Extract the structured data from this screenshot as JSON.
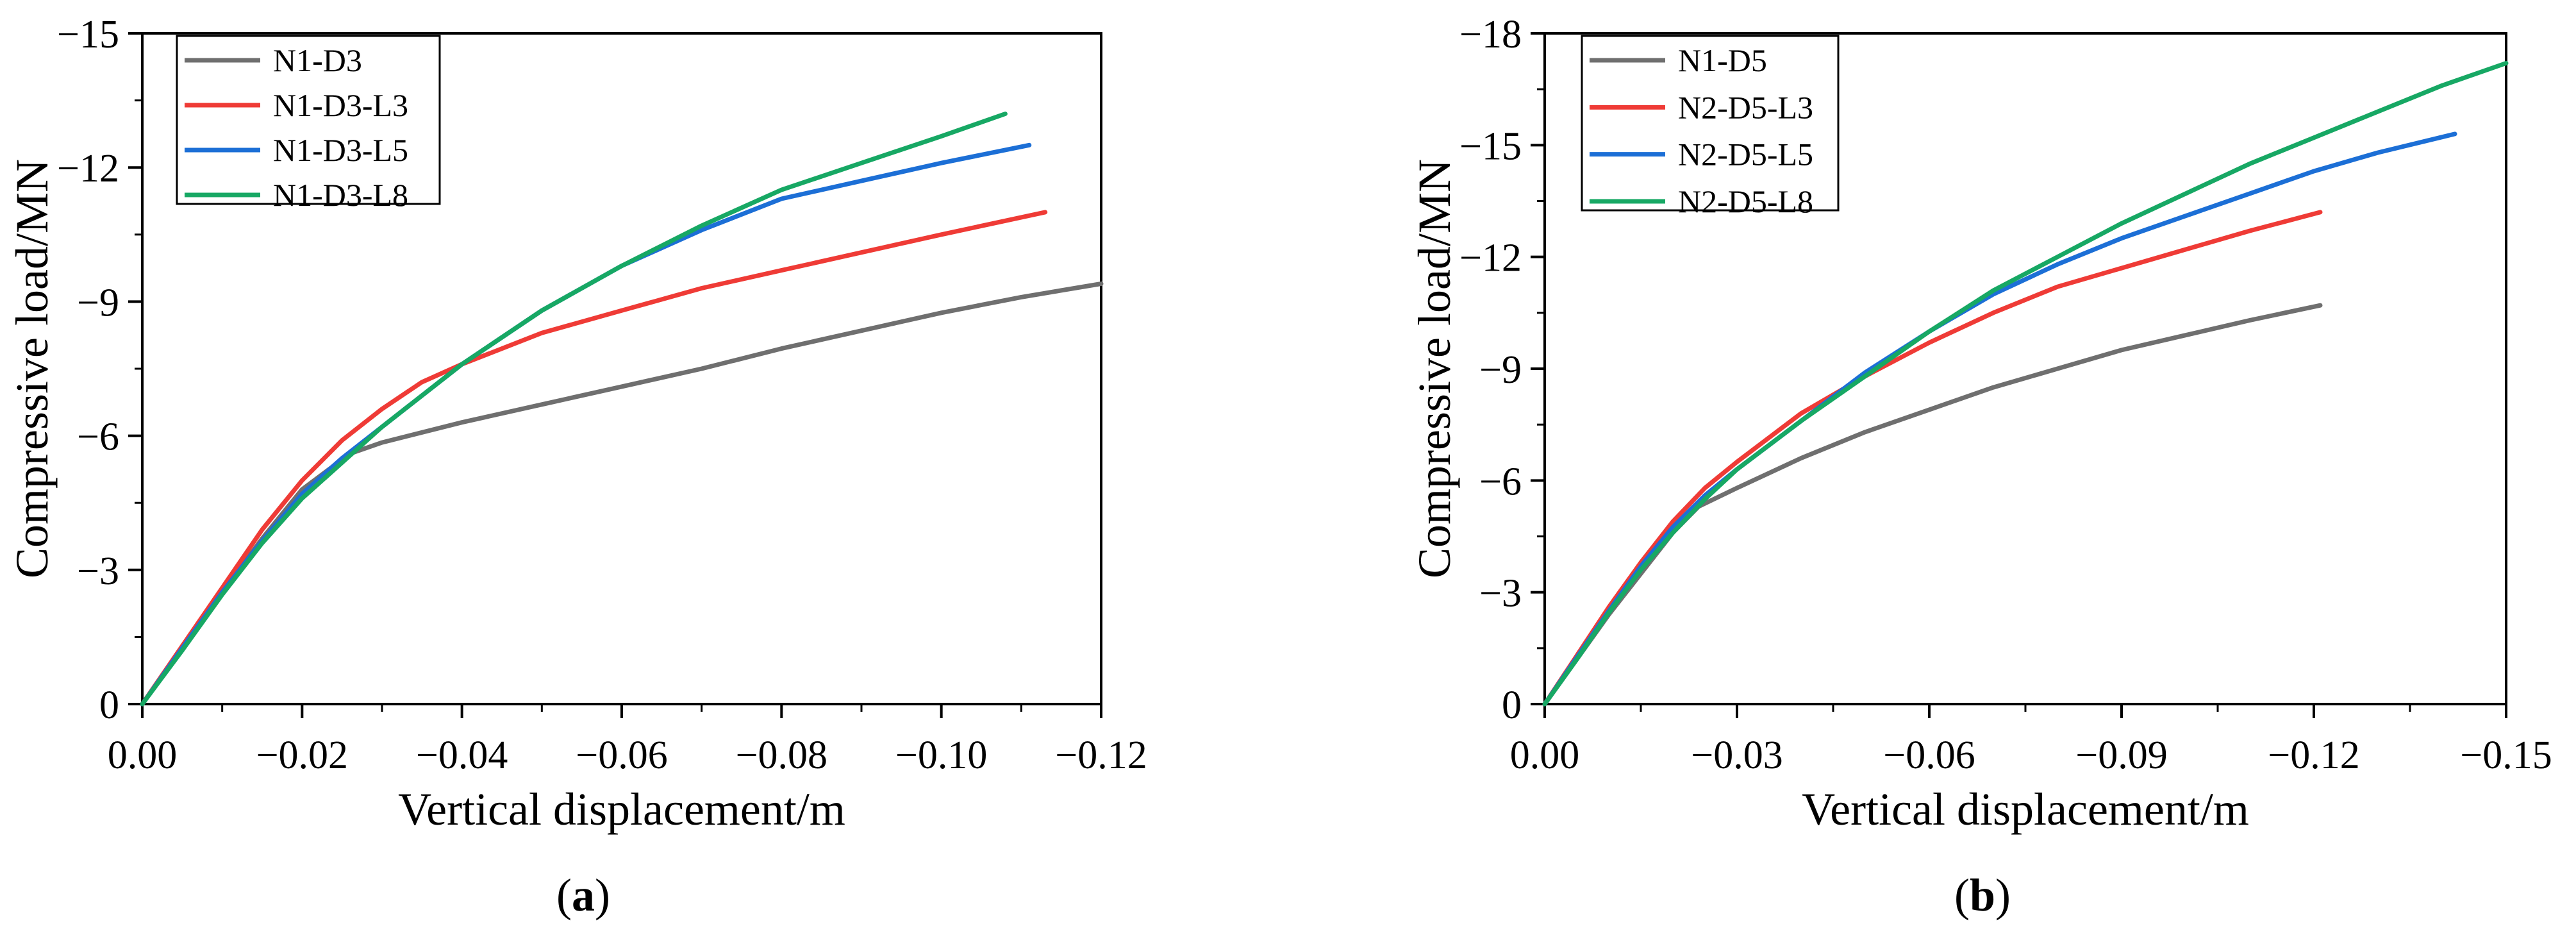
{
  "colors": {
    "N1-D3": "#6f6f6f",
    "N1-D3-L3": "#ef3b36",
    "N1-D3-L5": "#1c6fd6",
    "N1-D3-L8": "#17a864",
    "N1-D5": "#6f6f6f",
    "N2-D5-L3": "#ef3b36",
    "N2-D5-L5": "#1c6fd6",
    "N2-D5-L8": "#17a864"
  },
  "chart_data": [
    {
      "type": "line",
      "caption": "(a)",
      "xlabel": "Vertical displacement/m",
      "ylabel": "Compressive load/MN",
      "xlim": [
        0,
        -0.12
      ],
      "ylim": [
        0,
        -15
      ],
      "xticks": [
        0,
        -0.02,
        -0.04,
        -0.06,
        -0.08,
        -0.1,
        -0.12
      ],
      "xtick_labels": [
        "0.00",
        "−0.02",
        "−0.04",
        "−0.06",
        "−0.08",
        "−0.10",
        "−0.12"
      ],
      "yticks": [
        0,
        -3,
        -6,
        -9,
        -12,
        -15
      ],
      "ytick_labels": [
        "0",
        "−3",
        "−6",
        "−9",
        "−12",
        "−15"
      ],
      "legend_position": "top-left",
      "series": [
        {
          "name": "N1-D3",
          "points": [
            [
              0,
              0
            ],
            [
              -0.005,
              -1.25
            ],
            [
              -0.01,
              -2.5
            ],
            [
              -0.015,
              -3.7
            ],
            [
              -0.02,
              -4.8
            ],
            [
              -0.026,
              -5.6
            ],
            [
              -0.03,
              -5.85
            ],
            [
              -0.04,
              -6.3
            ],
            [
              -0.05,
              -6.7
            ],
            [
              -0.06,
              -7.1
            ],
            [
              -0.07,
              -7.5
            ],
            [
              -0.08,
              -7.95
            ],
            [
              -0.09,
              -8.35
            ],
            [
              -0.1,
              -8.75
            ],
            [
              -0.11,
              -9.1
            ],
            [
              -0.12,
              -9.4
            ]
          ]
        },
        {
          "name": "N1-D3-L3",
          "points": [
            [
              0,
              0
            ],
            [
              -0.005,
              -1.3
            ],
            [
              -0.01,
              -2.6
            ],
            [
              -0.015,
              -3.9
            ],
            [
              -0.02,
              -5.0
            ],
            [
              -0.025,
              -5.9
            ],
            [
              -0.03,
              -6.6
            ],
            [
              -0.035,
              -7.2
            ],
            [
              -0.04,
              -7.6
            ],
            [
              -0.05,
              -8.3
            ],
            [
              -0.06,
              -8.8
            ],
            [
              -0.07,
              -9.3
            ],
            [
              -0.08,
              -9.7
            ],
            [
              -0.09,
              -10.1
            ],
            [
              -0.1,
              -10.5
            ],
            [
              -0.113,
              -11.0
            ]
          ]
        },
        {
          "name": "N1-D3-L5",
          "points": [
            [
              0,
              0
            ],
            [
              -0.005,
              -1.25
            ],
            [
              -0.01,
              -2.5
            ],
            [
              -0.015,
              -3.65
            ],
            [
              -0.02,
              -4.7
            ],
            [
              -0.025,
              -5.5
            ],
            [
              -0.03,
              -6.2
            ],
            [
              -0.04,
              -7.6
            ],
            [
              -0.05,
              -8.8
            ],
            [
              -0.06,
              -9.8
            ],
            [
              -0.07,
              -10.6
            ],
            [
              -0.08,
              -11.3
            ],
            [
              -0.09,
              -11.7
            ],
            [
              -0.1,
              -12.1
            ],
            [
              -0.111,
              -12.5
            ]
          ]
        },
        {
          "name": "N1-D3-L8",
          "points": [
            [
              0,
              0
            ],
            [
              -0.005,
              -1.2
            ],
            [
              -0.01,
              -2.45
            ],
            [
              -0.015,
              -3.6
            ],
            [
              -0.02,
              -4.6
            ],
            [
              -0.025,
              -5.4
            ],
            [
              -0.03,
              -6.2
            ],
            [
              -0.04,
              -7.6
            ],
            [
              -0.05,
              -8.8
            ],
            [
              -0.06,
              -9.8
            ],
            [
              -0.07,
              -10.7
            ],
            [
              -0.08,
              -11.5
            ],
            [
              -0.09,
              -12.1
            ],
            [
              -0.1,
              -12.7
            ],
            [
              -0.108,
              -13.2
            ]
          ]
        }
      ]
    },
    {
      "type": "line",
      "caption": "(b)",
      "xlabel": "Vertical displacement/m",
      "ylabel": "Compressive load/MN",
      "xlim": [
        0,
        -0.15
      ],
      "ylim": [
        0,
        -18
      ],
      "xticks": [
        0,
        -0.03,
        -0.06,
        -0.09,
        -0.12,
        -0.15
      ],
      "xtick_labels": [
        "0.00",
        "−0.03",
        "−0.06",
        "−0.09",
        "−0.12",
        "−0.15"
      ],
      "yticks": [
        0,
        -3,
        -6,
        -9,
        -12,
        -15,
        -18
      ],
      "ytick_labels": [
        "0",
        "−3",
        "−6",
        "−9",
        "−12",
        "−15",
        "−18"
      ],
      "legend_position": "top-left",
      "series": [
        {
          "name": "N1-D5",
          "points": [
            [
              0,
              0
            ],
            [
              -0.005,
              -1.2
            ],
            [
              -0.01,
              -2.4
            ],
            [
              -0.015,
              -3.5
            ],
            [
              -0.02,
              -4.6
            ],
            [
              -0.024,
              -5.3
            ],
            [
              -0.03,
              -5.8
            ],
            [
              -0.04,
              -6.6
            ],
            [
              -0.05,
              -7.3
            ],
            [
              -0.06,
              -7.9
            ],
            [
              -0.07,
              -8.5
            ],
            [
              -0.08,
              -9.0
            ],
            [
              -0.09,
              -9.5
            ],
            [
              -0.1,
              -9.9
            ],
            [
              -0.11,
              -10.3
            ],
            [
              -0.121,
              -10.7
            ]
          ]
        },
        {
          "name": "N2-D5-L3",
          "points": [
            [
              0,
              0
            ],
            [
              -0.005,
              -1.3
            ],
            [
              -0.01,
              -2.6
            ],
            [
              -0.015,
              -3.8
            ],
            [
              -0.02,
              -4.9
            ],
            [
              -0.025,
              -5.8
            ],
            [
              -0.03,
              -6.5
            ],
            [
              -0.04,
              -7.8
            ],
            [
              -0.05,
              -8.8
            ],
            [
              -0.06,
              -9.7
            ],
            [
              -0.07,
              -10.5
            ],
            [
              -0.08,
              -11.2
            ],
            [
              -0.09,
              -11.7
            ],
            [
              -0.1,
              -12.2
            ],
            [
              -0.11,
              -12.7
            ],
            [
              -0.121,
              -13.2
            ]
          ]
        },
        {
          "name": "N2-D5-L5",
          "points": [
            [
              0,
              0
            ],
            [
              -0.005,
              -1.25
            ],
            [
              -0.01,
              -2.5
            ],
            [
              -0.015,
              -3.7
            ],
            [
              -0.02,
              -4.75
            ],
            [
              -0.025,
              -5.6
            ],
            [
              -0.03,
              -6.3
            ],
            [
              -0.04,
              -7.6
            ],
            [
              -0.05,
              -8.9
            ],
            [
              -0.06,
              -10.0
            ],
            [
              -0.07,
              -11.0
            ],
            [
              -0.08,
              -11.8
            ],
            [
              -0.09,
              -12.5
            ],
            [
              -0.1,
              -13.1
            ],
            [
              -0.11,
              -13.7
            ],
            [
              -0.12,
              -14.3
            ],
            [
              -0.13,
              -14.8
            ],
            [
              -0.142,
              -15.3
            ]
          ]
        },
        {
          "name": "N2-D5-L8",
          "points": [
            [
              0,
              0
            ],
            [
              -0.005,
              -1.2
            ],
            [
              -0.01,
              -2.45
            ],
            [
              -0.015,
              -3.6
            ],
            [
              -0.02,
              -4.6
            ],
            [
              -0.025,
              -5.5
            ],
            [
              -0.03,
              -6.3
            ],
            [
              -0.04,
              -7.6
            ],
            [
              -0.05,
              -8.8
            ],
            [
              -0.06,
              -10.0
            ],
            [
              -0.07,
              -11.1
            ],
            [
              -0.08,
              -12.0
            ],
            [
              -0.09,
              -12.9
            ],
            [
              -0.1,
              -13.7
            ],
            [
              -0.11,
              -14.5
            ],
            [
              -0.12,
              -15.2
            ],
            [
              -0.13,
              -15.9
            ],
            [
              -0.14,
              -16.6
            ],
            [
              -0.15,
              -17.2
            ]
          ]
        }
      ]
    }
  ]
}
